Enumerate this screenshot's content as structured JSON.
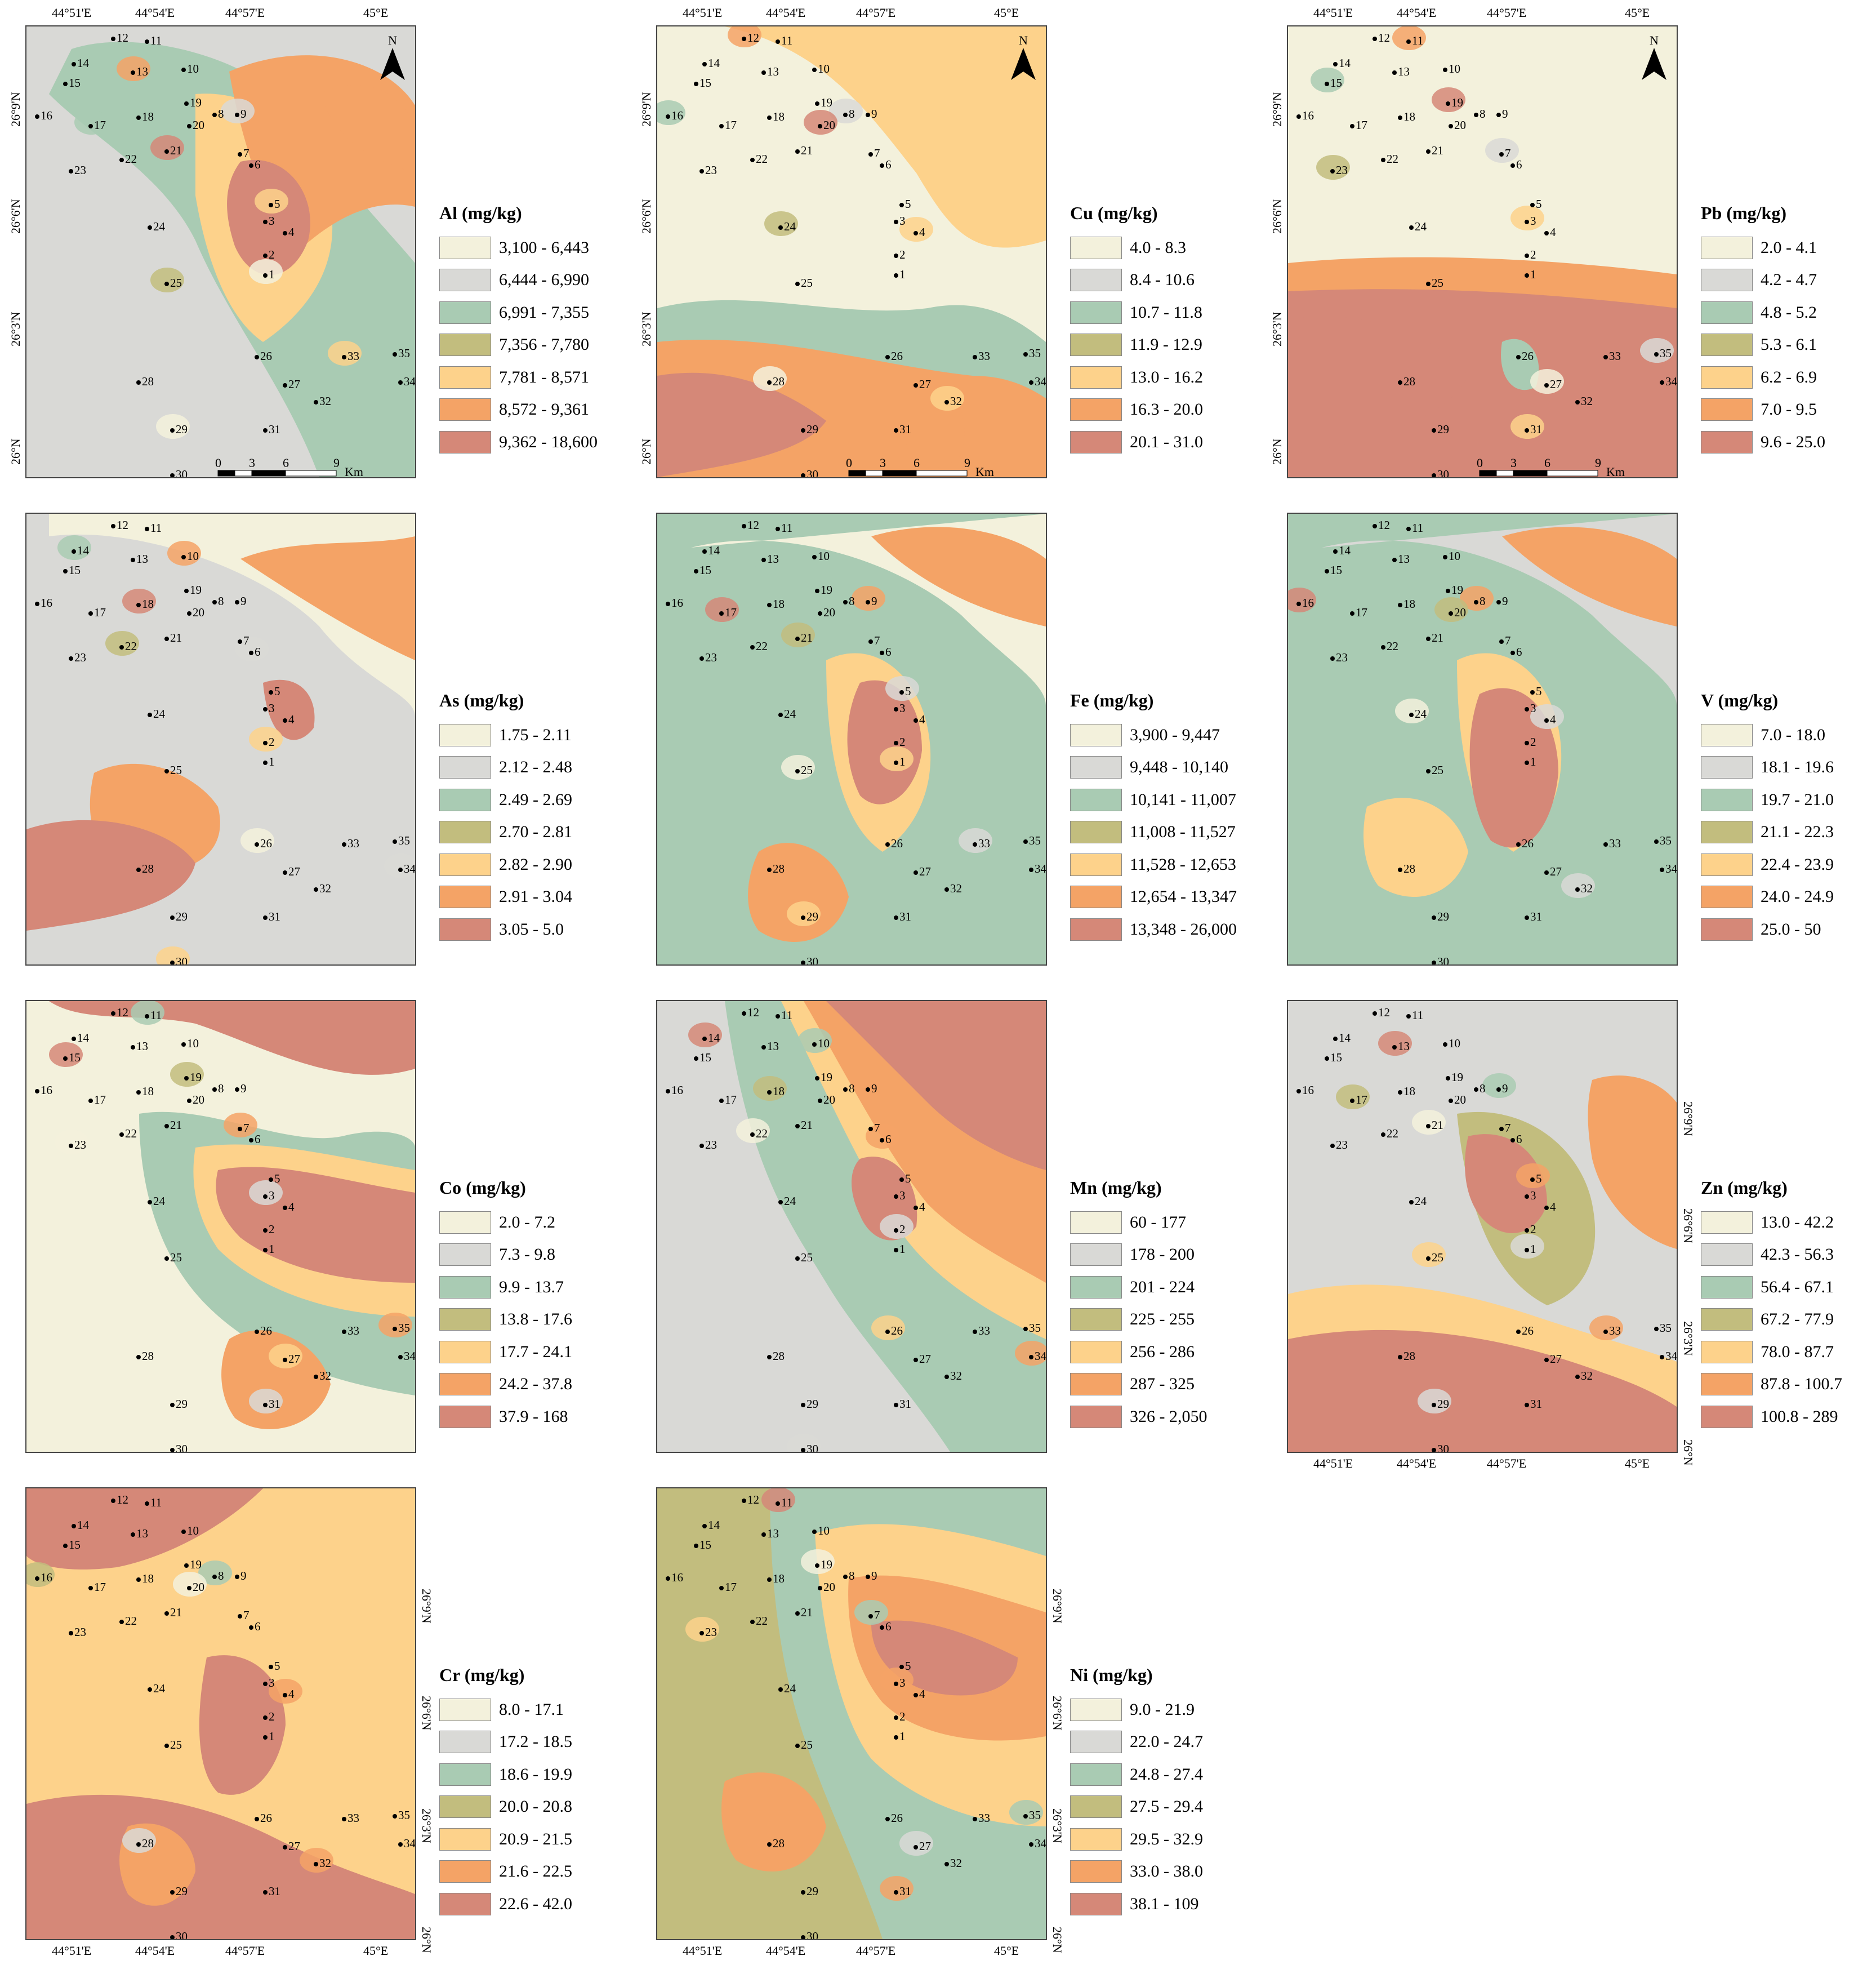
{
  "figure": {
    "axis_top_lon": [
      "44°51'E",
      "44°54'E",
      "44°57'E",
      "45°E"
    ],
    "axis_left_lat": [
      "26°9'N",
      "26°6'N",
      "26°3'N",
      "26°N"
    ],
    "north_label": "N",
    "scale_labels": [
      "0",
      "3",
      "6",
      "9"
    ],
    "scale_unit": "Km"
  },
  "colors": [
    "#f3f1dc",
    "#d9d9d6",
    "#a9cbb3",
    "#c2bd7e",
    "#fdd28b",
    "#f4a366",
    "#d58878"
  ],
  "samples": [
    "1",
    "2",
    "3",
    "4",
    "5",
    "6",
    "7",
    "8",
    "9",
    "10",
    "11",
    "12",
    "13",
    "14",
    "15",
    "16",
    "17",
    "18",
    "19",
    "20",
    "21",
    "22",
    "23",
    "24",
    "25",
    "26",
    "27",
    "28",
    "29",
    "30",
    "31",
    "32",
    "33",
    "34",
    "35"
  ],
  "panels": [
    {
      "element": "Al",
      "title": "Al (mg/kg)",
      "ranges": [
        "3,100 - 6,443",
        "6,444 - 6,990",
        "6,991 - 7,355",
        "7,356 - 7,780",
        "7,781 - 8,571",
        "8,572 - 9,361",
        "9,362 - 18,600"
      ]
    },
    {
      "element": "Cu",
      "title": "Cu (mg/kg)",
      "ranges": [
        "4.0 - 8.3",
        "8.4 - 10.6",
        "10.7 - 11.8",
        "11.9 - 12.9",
        "13.0 - 16.2",
        "16.3 - 20.0",
        "20.1 - 31.0"
      ]
    },
    {
      "element": "Pb",
      "title": "Pb (mg/kg)",
      "ranges": [
        "2.0 - 4.1",
        "4.2 - 4.7",
        "4.8 - 5.2",
        "5.3 - 6.1",
        "6.2 - 6.9",
        "7.0 - 9.5",
        "9.6 - 25.0"
      ]
    },
    {
      "element": "As",
      "title": "As (mg/kg)",
      "ranges": [
        "1.75 - 2.11",
        "2.12 - 2.48",
        "2.49 - 2.69",
        "2.70 - 2.81",
        "2.82 - 2.90",
        "2.91 - 3.04",
        "3.05 - 5.0"
      ]
    },
    {
      "element": "Fe",
      "title": "Fe (mg/kg)",
      "ranges": [
        "3,900 - 9,447",
        "9,448 - 10,140",
        "10,141 - 11,007",
        "11,008 - 11,527",
        "11,528 - 12,653",
        "12,654 - 13,347",
        "13,348 - 26,000"
      ]
    },
    {
      "element": "V",
      "title": "V (mg/kg)",
      "ranges": [
        "7.0 - 18.0",
        "18.1 - 19.6",
        "19.7 - 21.0",
        "21.1 - 22.3",
        "22.4 - 23.9",
        "24.0 - 24.9",
        "25.0 - 50"
      ]
    },
    {
      "element": "Co",
      "title": "Co (mg/kg)",
      "ranges": [
        "2.0 - 7.2",
        "7.3 - 9.8",
        "9.9 - 13.7",
        "13.8 - 17.6",
        "17.7 - 24.1",
        "24.2 - 37.8",
        "37.9 - 168"
      ]
    },
    {
      "element": "Mn",
      "title": "Mn (mg/kg)",
      "ranges": [
        "60 - 177",
        "178 - 200",
        "201 - 224",
        "225 - 255",
        "256 - 286",
        "287 - 325",
        "326 - 2,050"
      ]
    },
    {
      "element": "Zn",
      "title": "Zn (mg/kg)",
      "ranges": [
        "13.0 - 42.2",
        "42.3 - 56.3",
        "56.4 - 67.1",
        "67.2 - 77.9",
        "78.0 - 87.7",
        "87.8 - 100.7",
        "100.8 - 289"
      ]
    },
    {
      "element": "Cr",
      "title": "Cr (mg/kg)",
      "ranges": [
        "8.0 - 17.1",
        "17.2 - 18.5",
        "18.6 - 19.9",
        "20.0 - 20.8",
        "20.9 - 21.5",
        "21.6 - 22.5",
        "22.6 - 42.0"
      ]
    },
    {
      "element": "Ni",
      "title": "Ni (mg/kg)",
      "ranges": [
        "9.0 - 21.9",
        "22.0 - 24.7",
        "24.8 - 27.4",
        "27.5 - 29.4",
        "29.5 - 32.9",
        "33.0 - 38.0",
        "38.1 - 109"
      ]
    }
  ]
}
